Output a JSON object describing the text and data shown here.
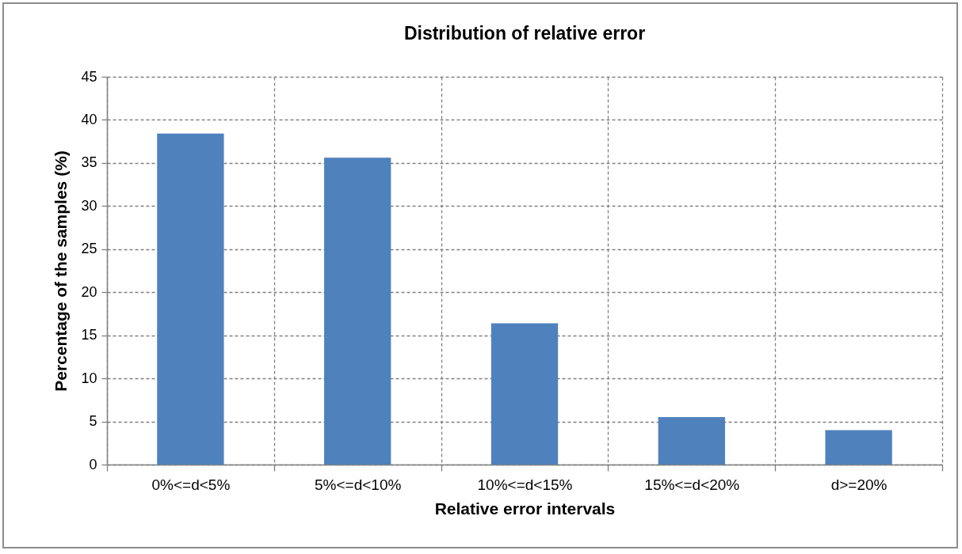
{
  "chart_data": {
    "type": "bar",
    "title": "Distribution of relative error",
    "xlabel": "Relative error intervals",
    "ylabel": "Percentage of the samples (%)",
    "categories": [
      "0%<=d<5%",
      "5%<=d<10%",
      "10%<=d<15%",
      "15%<=d<20%",
      "d>=20%"
    ],
    "values": [
      38.4,
      35.6,
      16.4,
      5.5,
      4.0
    ],
    "color": "#4f81bd",
    "ylim": [
      0,
      45
    ],
    "yticks": [
      0,
      5,
      10,
      15,
      20,
      25,
      30,
      35,
      40,
      45
    ],
    "grid": true
  }
}
